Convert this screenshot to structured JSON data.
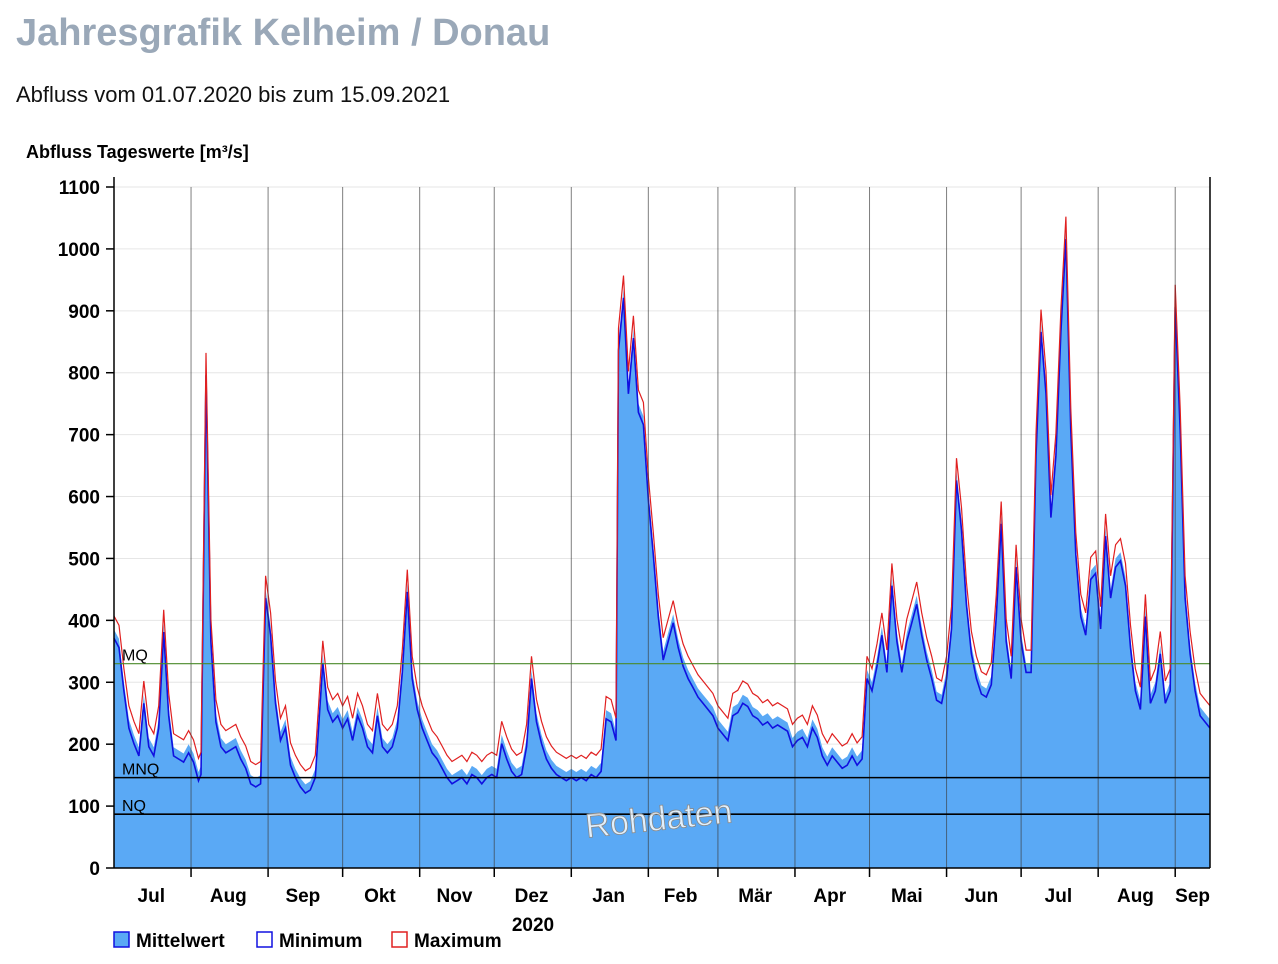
{
  "page": {
    "title": "Jahresgrafik Kelheim / Donau",
    "subtitle": "Abfluss vom 01.07.2020 bis zum 15.09.2021"
  },
  "colors": {
    "area_fill": "#5aa9f5",
    "minimum_line": "#1010e0",
    "maximum_line": "#e02020",
    "mq_line": "#4a8a2a",
    "ref_line": "#000000",
    "grid": "#e6e6e6"
  },
  "chart_data": {
    "type": "area",
    "ylabel": "Abfluss Tageswerte [m³/s]",
    "ylim": [
      0,
      1100
    ],
    "yticks": [
      0,
      100,
      200,
      300,
      400,
      500,
      600,
      700,
      800,
      900,
      1000,
      1100
    ],
    "grid": true,
    "x_start": "2020-07-01",
    "x_end": "2021-09-15",
    "year_label": "2020",
    "month_labels": [
      {
        "label": "Jul",
        "date": "2020-07-16"
      },
      {
        "label": "Aug",
        "date": "2020-08-16"
      },
      {
        "label": "Sep",
        "date": "2020-09-15"
      },
      {
        "label": "Okt",
        "date": "2020-10-16"
      },
      {
        "label": "Nov",
        "date": "2020-11-15"
      },
      {
        "label": "Dez",
        "date": "2020-12-16"
      },
      {
        "label": "Jan",
        "date": "2021-01-16"
      },
      {
        "label": "Feb",
        "date": "2021-02-14"
      },
      {
        "label": "Mär",
        "date": "2021-03-16"
      },
      {
        "label": "Apr",
        "date": "2021-04-15"
      },
      {
        "label": "Mai",
        "date": "2021-05-16"
      },
      {
        "label": "Jun",
        "date": "2021-06-15"
      },
      {
        "label": "Jul",
        "date": "2021-07-16"
      },
      {
        "label": "Aug",
        "date": "2021-08-16"
      },
      {
        "label": "Sep",
        "date": "2021-09-08"
      }
    ],
    "month_boundaries": [
      "2020-08-01",
      "2020-09-01",
      "2020-10-01",
      "2020-11-01",
      "2020-12-01",
      "2021-01-01",
      "2021-02-01",
      "2021-03-01",
      "2021-04-01",
      "2021-05-01",
      "2021-06-01",
      "2021-07-01",
      "2021-08-01",
      "2021-09-01"
    ],
    "reference_lines": [
      {
        "label": "MQ",
        "value": 330
      },
      {
        "label": "MNQ",
        "value": 146
      },
      {
        "label": "NQ",
        "value": 87
      }
    ],
    "watermark": "Rohdaten",
    "legend": [
      {
        "name": "Mittelwert"
      },
      {
        "name": "Minimum"
      },
      {
        "name": "Maximum"
      }
    ],
    "series": [
      {
        "name": "Mittelwert",
        "points": [
          [
            "2020-07-01",
            385
          ],
          [
            "2020-07-03",
            370
          ],
          [
            "2020-07-05",
            300
          ],
          [
            "2020-07-07",
            240
          ],
          [
            "2020-07-09",
            215
          ],
          [
            "2020-07-11",
            195
          ],
          [
            "2020-07-13",
            280
          ],
          [
            "2020-07-15",
            210
          ],
          [
            "2020-07-17",
            195
          ],
          [
            "2020-07-19",
            240
          ],
          [
            "2020-07-21",
            395
          ],
          [
            "2020-07-23",
            260
          ],
          [
            "2020-07-25",
            195
          ],
          [
            "2020-07-27",
            190
          ],
          [
            "2020-07-29",
            185
          ],
          [
            "2020-07-31",
            200
          ],
          [
            "2020-08-02",
            185
          ],
          [
            "2020-08-04",
            155
          ],
          [
            "2020-08-05",
            165
          ],
          [
            "2020-08-07",
            810
          ],
          [
            "2020-08-09",
            380
          ],
          [
            "2020-08-11",
            250
          ],
          [
            "2020-08-13",
            210
          ],
          [
            "2020-08-15",
            200
          ],
          [
            "2020-08-17",
            205
          ],
          [
            "2020-08-19",
            210
          ],
          [
            "2020-08-21",
            190
          ],
          [
            "2020-08-23",
            175
          ],
          [
            "2020-08-25",
            150
          ],
          [
            "2020-08-27",
            145
          ],
          [
            "2020-08-29",
            150
          ],
          [
            "2020-08-31",
            450
          ],
          [
            "2020-09-02",
            390
          ],
          [
            "2020-09-04",
            280
          ],
          [
            "2020-09-06",
            220
          ],
          [
            "2020-09-08",
            240
          ],
          [
            "2020-09-10",
            180
          ],
          [
            "2020-09-12",
            160
          ],
          [
            "2020-09-14",
            145
          ],
          [
            "2020-09-16",
            135
          ],
          [
            "2020-09-18",
            140
          ],
          [
            "2020-09-20",
            160
          ],
          [
            "2020-09-23",
            345
          ],
          [
            "2020-09-25",
            270
          ],
          [
            "2020-09-27",
            250
          ],
          [
            "2020-09-29",
            260
          ],
          [
            "2020-10-01",
            240
          ],
          [
            "2020-10-03",
            255
          ],
          [
            "2020-10-05",
            220
          ],
          [
            "2020-10-07",
            260
          ],
          [
            "2020-10-09",
            240
          ],
          [
            "2020-10-11",
            210
          ],
          [
            "2020-10-13",
            200
          ],
          [
            "2020-10-15",
            260
          ],
          [
            "2020-10-17",
            210
          ],
          [
            "2020-10-19",
            200
          ],
          [
            "2020-10-21",
            210
          ],
          [
            "2020-10-23",
            240
          ],
          [
            "2020-10-25",
            330
          ],
          [
            "2020-10-27",
            460
          ],
          [
            "2020-10-29",
            320
          ],
          [
            "2020-10-31",
            270
          ],
          [
            "2020-11-02",
            240
          ],
          [
            "2020-11-04",
            220
          ],
          [
            "2020-11-06",
            200
          ],
          [
            "2020-11-08",
            190
          ],
          [
            "2020-11-10",
            175
          ],
          [
            "2020-11-12",
            160
          ],
          [
            "2020-11-14",
            150
          ],
          [
            "2020-11-16",
            155
          ],
          [
            "2020-11-18",
            160
          ],
          [
            "2020-11-20",
            150
          ],
          [
            "2020-11-22",
            165
          ],
          [
            "2020-11-24",
            160
          ],
          [
            "2020-11-26",
            150
          ],
          [
            "2020-11-28",
            160
          ],
          [
            "2020-11-30",
            165
          ],
          [
            "2020-12-02",
            160
          ],
          [
            "2020-12-04",
            215
          ],
          [
            "2020-12-06",
            190
          ],
          [
            "2020-12-08",
            170
          ],
          [
            "2020-12-10",
            160
          ],
          [
            "2020-12-12",
            165
          ],
          [
            "2020-12-14",
            210
          ],
          [
            "2020-12-16",
            320
          ],
          [
            "2020-12-18",
            250
          ],
          [
            "2020-12-20",
            215
          ],
          [
            "2020-12-22",
            190
          ],
          [
            "2020-12-24",
            175
          ],
          [
            "2020-12-26",
            165
          ],
          [
            "2020-12-28",
            160
          ],
          [
            "2020-12-30",
            155
          ],
          [
            "2021-01-01",
            160
          ],
          [
            "2021-01-03",
            155
          ],
          [
            "2021-01-05",
            160
          ],
          [
            "2021-01-07",
            155
          ],
          [
            "2021-01-09",
            165
          ],
          [
            "2021-01-11",
            160
          ],
          [
            "2021-01-13",
            170
          ],
          [
            "2021-01-15",
            255
          ],
          [
            "2021-01-17",
            250
          ],
          [
            "2021-01-19",
            220
          ],
          [
            "2021-01-20",
            850
          ],
          [
            "2021-01-22",
            935
          ],
          [
            "2021-01-24",
            780
          ],
          [
            "2021-01-26",
            870
          ],
          [
            "2021-01-28",
            750
          ],
          [
            "2021-01-30",
            730
          ],
          [
            "2021-02-01",
            610
          ],
          [
            "2021-02-03",
            520
          ],
          [
            "2021-02-05",
            420
          ],
          [
            "2021-02-07",
            350
          ],
          [
            "2021-02-09",
            380
          ],
          [
            "2021-02-11",
            410
          ],
          [
            "2021-02-13",
            370
          ],
          [
            "2021-02-15",
            340
          ],
          [
            "2021-02-17",
            320
          ],
          [
            "2021-02-19",
            305
          ],
          [
            "2021-02-21",
            290
          ],
          [
            "2021-02-23",
            280
          ],
          [
            "2021-02-25",
            270
          ],
          [
            "2021-02-27",
            260
          ],
          [
            "2021-03-01",
            240
          ],
          [
            "2021-03-03",
            230
          ],
          [
            "2021-03-05",
            220
          ],
          [
            "2021-03-07",
            260
          ],
          [
            "2021-03-09",
            265
          ],
          [
            "2021-03-11",
            280
          ],
          [
            "2021-03-13",
            275
          ],
          [
            "2021-03-15",
            260
          ],
          [
            "2021-03-17",
            255
          ],
          [
            "2021-03-19",
            245
          ],
          [
            "2021-03-21",
            250
          ],
          [
            "2021-03-23",
            240
          ],
          [
            "2021-03-25",
            245
          ],
          [
            "2021-03-27",
            240
          ],
          [
            "2021-03-29",
            235
          ],
          [
            "2021-03-31",
            210
          ],
          [
            "2021-04-02",
            220
          ],
          [
            "2021-04-04",
            225
          ],
          [
            "2021-04-06",
            210
          ],
          [
            "2021-04-08",
            240
          ],
          [
            "2021-04-10",
            225
          ],
          [
            "2021-04-12",
            195
          ],
          [
            "2021-04-14",
            180
          ],
          [
            "2021-04-16",
            195
          ],
          [
            "2021-04-18",
            185
          ],
          [
            "2021-04-20",
            175
          ],
          [
            "2021-04-22",
            180
          ],
          [
            "2021-04-24",
            195
          ],
          [
            "2021-04-26",
            180
          ],
          [
            "2021-04-28",
            190
          ],
          [
            "2021-04-30",
            320
          ],
          [
            "2021-05-02",
            300
          ],
          [
            "2021-05-04",
            340
          ],
          [
            "2021-05-06",
            390
          ],
          [
            "2021-05-08",
            330
          ],
          [
            "2021-05-10",
            470
          ],
          [
            "2021-05-12",
            380
          ],
          [
            "2021-05-14",
            330
          ],
          [
            "2021-05-16",
            380
          ],
          [
            "2021-05-18",
            410
          ],
          [
            "2021-05-20",
            440
          ],
          [
            "2021-05-22",
            390
          ],
          [
            "2021-05-24",
            350
          ],
          [
            "2021-05-26",
            320
          ],
          [
            "2021-05-28",
            285
          ],
          [
            "2021-05-30",
            280
          ],
          [
            "2021-06-01",
            320
          ],
          [
            "2021-06-03",
            400
          ],
          [
            "2021-06-05",
            640
          ],
          [
            "2021-06-07",
            560
          ],
          [
            "2021-06-09",
            440
          ],
          [
            "2021-06-11",
            360
          ],
          [
            "2021-06-13",
            320
          ],
          [
            "2021-06-15",
            295
          ],
          [
            "2021-06-17",
            290
          ],
          [
            "2021-06-19",
            310
          ],
          [
            "2021-06-21",
            420
          ],
          [
            "2021-06-23",
            570
          ],
          [
            "2021-06-25",
            380
          ],
          [
            "2021-06-27",
            320
          ],
          [
            "2021-06-29",
            500
          ],
          [
            "2021-07-01",
            380
          ],
          [
            "2021-07-03",
            330
          ],
          [
            "2021-07-05",
            330
          ],
          [
            "2021-07-07",
            680
          ],
          [
            "2021-07-09",
            880
          ],
          [
            "2021-07-11",
            780
          ],
          [
            "2021-07-13",
            580
          ],
          [
            "2021-07-15",
            680
          ],
          [
            "2021-07-17",
            880
          ],
          [
            "2021-07-19",
            1030
          ],
          [
            "2021-07-21",
            720
          ],
          [
            "2021-07-23",
            520
          ],
          [
            "2021-07-25",
            420
          ],
          [
            "2021-07-27",
            390
          ],
          [
            "2021-07-29",
            480
          ],
          [
            "2021-07-31",
            490
          ],
          [
            "2021-08-02",
            400
          ],
          [
            "2021-08-04",
            550
          ],
          [
            "2021-08-06",
            450
          ],
          [
            "2021-08-08",
            500
          ],
          [
            "2021-08-10",
            510
          ],
          [
            "2021-08-12",
            470
          ],
          [
            "2021-08-14",
            370
          ],
          [
            "2021-08-16",
            300
          ],
          [
            "2021-08-18",
            270
          ],
          [
            "2021-08-20",
            420
          ],
          [
            "2021-08-22",
            280
          ],
          [
            "2021-08-24",
            300
          ],
          [
            "2021-08-26",
            360
          ],
          [
            "2021-08-28",
            280
          ],
          [
            "2021-08-30",
            300
          ],
          [
            "2021-09-01",
            920
          ],
          [
            "2021-09-03",
            720
          ],
          [
            "2021-09-05",
            450
          ],
          [
            "2021-09-07",
            360
          ],
          [
            "2021-09-09",
            300
          ],
          [
            "2021-09-11",
            260
          ],
          [
            "2021-09-13",
            250
          ],
          [
            "2021-09-15",
            240
          ]
        ]
      },
      {
        "name": "Minimum"
      },
      {
        "name": "Maximum"
      }
    ]
  }
}
